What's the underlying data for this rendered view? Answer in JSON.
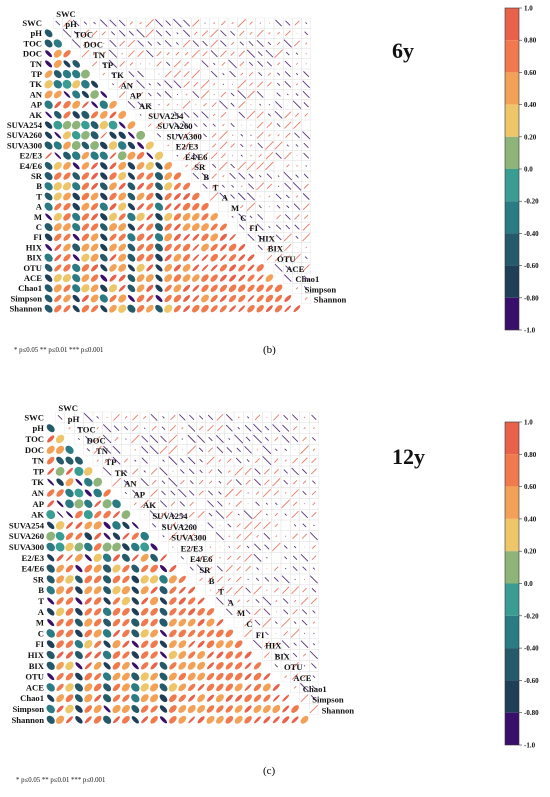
{
  "panels": [
    {
      "id": "b",
      "caption": "(b)",
      "title": "6y",
      "significance_legend": "* p≤0.05  ** p≤0.01  *** p≤0.001"
    },
    {
      "id": "c",
      "caption": "(c)",
      "title": "12y",
      "significance_legend": "* p≤0.05  ** p≤0.01  *** p≤0.001"
    }
  ],
  "chart_data": [
    {
      "type": "heatmap",
      "subtype": "lower-triangle correlation matrix (ellipses)",
      "title": "6y",
      "variables": [
        "SWC",
        "pH",
        "TOC",
        "DOC",
        "TN",
        "TP",
        "TK",
        "AN",
        "AP",
        "AK",
        "SUVA254",
        "SUVA260",
        "SUVA300",
        "E2/E3",
        "E4/E6",
        "SR",
        "B",
        "T",
        "A",
        "M",
        "C",
        "FI",
        "HIX",
        "BIX",
        "OTU",
        "ACE",
        "Chao1",
        "Simpson",
        "Shannon"
      ],
      "colorbar": {
        "ticks": [
          "1.0",
          "0.80",
          "0.60",
          "0.40",
          "0.20",
          "0.0",
          "-0.20",
          "-0.40",
          "-0.60",
          "-0.80",
          "-1.0"
        ],
        "range": [
          -1,
          1
        ],
        "colors": [
          "#e8614b",
          "#f07a4e",
          "#f3a157",
          "#eec66a",
          "#8fb47a",
          "#3a9d93",
          "#2a7b83",
          "#245a6a",
          "#1f3f58",
          "#3a0f6b"
        ]
      },
      "significance_levels": [
        "* p≤0.05",
        "** p≤0.01",
        "*** p≤0.001"
      ]
    },
    {
      "type": "heatmap",
      "subtype": "lower-triangle correlation matrix (ellipses)",
      "title": "12y",
      "variables": [
        "SWC",
        "pH",
        "TOC",
        "DOC",
        "TN",
        "TP",
        "TK",
        "AN",
        "AP",
        "AK",
        "SUVA254",
        "SUVA260",
        "SUVA300",
        "E2/E3",
        "E4/E6",
        "SR",
        "B",
        "T",
        "A",
        "M",
        "C",
        "FI",
        "HIX",
        "BIX",
        "OTU",
        "ACE",
        "Chao1",
        "Simpson",
        "Shannon"
      ],
      "colorbar": {
        "ticks": [
          "1.0",
          "0.80",
          "0.60",
          "0.40",
          "0.20",
          "0.0",
          "-0.20",
          "-0.40",
          "-0.60",
          "-0.80",
          "-1.0"
        ],
        "range": [
          -1,
          1
        ],
        "colors": [
          "#e8614b",
          "#f07a4e",
          "#f3a157",
          "#eec66a",
          "#8fb47a",
          "#3a9d93",
          "#2a7b83",
          "#245a6a",
          "#1f3f58",
          "#3a0f6b"
        ]
      },
      "significance_levels": [
        "* p≤0.05",
        "** p≤0.01",
        "*** p≤0.001"
      ]
    }
  ]
}
